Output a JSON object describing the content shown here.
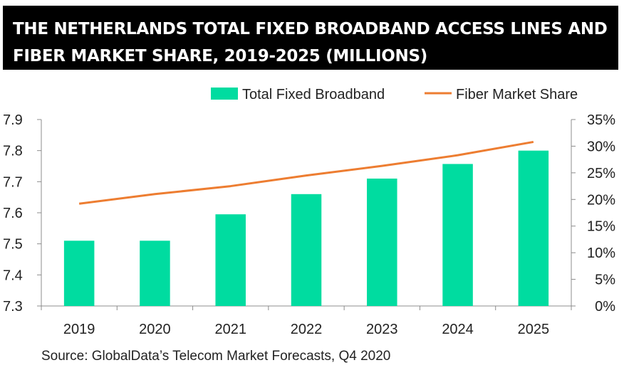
{
  "title": "THE NETHERLANDS TOTAL FIXED BROADBAND ACCESS LINES AND FIBER MARKET SHARE, 2019-2025 (MILLIONS)",
  "source": "Source: GlobalData’s Telecom Market Forecasts, Q4 2020",
  "colors": {
    "bar": "#00DCA0",
    "line": "#ED7D31",
    "title_bg": "#000000"
  },
  "chart_data": {
    "type": "bar",
    "categories": [
      "2019",
      "2020",
      "2021",
      "2022",
      "2023",
      "2024",
      "2025"
    ],
    "series": [
      {
        "name": "Total Fixed Broadband",
        "type": "bar",
        "axis": "left",
        "values": [
          7.51,
          7.51,
          7.595,
          7.66,
          7.71,
          7.757,
          7.8
        ]
      },
      {
        "name": "Fiber Market Share",
        "type": "line",
        "axis": "right",
        "values": [
          19.2,
          21.0,
          22.5,
          24.5,
          26.3,
          28.3,
          30.8
        ]
      }
    ],
    "y_left": {
      "range": [
        7.3,
        7.9
      ],
      "ticks": [
        "7.3",
        "7.4",
        "7.5",
        "7.6",
        "7.7",
        "7.8",
        "7.9"
      ]
    },
    "y_right": {
      "range": [
        0,
        35
      ],
      "ticks": [
        "0%",
        "5%",
        "10%",
        "15%",
        "20%",
        "25%",
        "30%",
        "35%"
      ]
    },
    "legend": {
      "position": "top-right"
    },
    "grid": false
  }
}
